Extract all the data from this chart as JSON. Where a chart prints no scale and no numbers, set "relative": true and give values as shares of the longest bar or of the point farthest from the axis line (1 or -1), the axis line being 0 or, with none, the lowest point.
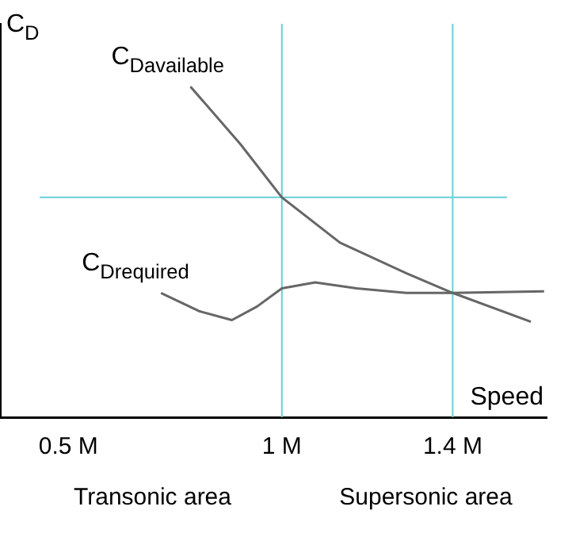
{
  "chart_data": {
    "type": "line",
    "relative": true,
    "xlabel": "Speed",
    "ylabel": "C$_{D}$",
    "xlim": [
      0.34,
      1.62
    ],
    "xticks": [
      {
        "value": 0.5,
        "label": "0.5 M"
      },
      {
        "value": 1,
        "label": "1 M"
      },
      {
        "value": 1.4,
        "label": "1.4 M"
      }
    ],
    "grid": false,
    "legend": false,
    "marker": "none",
    "line_style": "solid",
    "series": [
      {
        "name": "C$_{Davailable}$",
        "color": "#666666",
        "x": [
          0.786,
          0.903,
          1,
          1.136,
          1.291,
          1.4,
          1.583
        ],
        "values": [
          1,
          0.826,
          0.665,
          0.528,
          0.436,
          0.376,
          0.289
        ]
      },
      {
        "name": "C$_{Drequired}$",
        "color": "#666666",
        "x": [
          0.717,
          0.806,
          0.883,
          0.942,
          1,
          1.078,
          1.175,
          1.291,
          1.4,
          1.614
        ],
        "values": [
          0.376,
          0.321,
          0.294,
          0.335,
          0.39,
          0.408,
          0.39,
          0.376,
          0.376,
          0.381
        ]
      }
    ],
    "ref_lines": [
      {
        "axis": "x",
        "value": 1,
        "color": "#66d0d8"
      },
      {
        "axis": "x",
        "value": 1.4,
        "color": "#66d0d8"
      },
      {
        "axis": "y",
        "value": 0.665,
        "color": "#66d0d8"
      }
    ],
    "annotations": [
      "Transonic area",
      "Supersonic area"
    ]
  }
}
